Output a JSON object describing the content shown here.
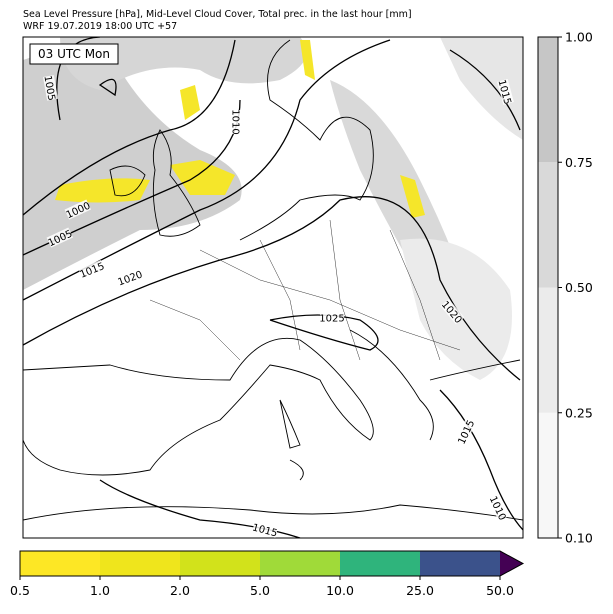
{
  "title_line1": "Sea Level Pressure [hPa], Mid-Level Cloud Cover, Total prec. in the last hour [mm]",
  "title_line2": "WRF 19.07.2019 18:00 UTC +57",
  "time_label": "03 UTC Mon",
  "isobar_labels": [
    "1005",
    "1010",
    "1015",
    "1000",
    "1005",
    "1015",
    "1020",
    "1025",
    "1020",
    "1015",
    "1010",
    "1015"
  ],
  "cloud_colorbar": {
    "ticks": [
      "0.10",
      "0.25",
      "0.50",
      "0.75",
      "1.00"
    ],
    "colors": [
      "#f7f7f7",
      "#ebebeb",
      "#d9d9d9",
      "#c6c6c6"
    ]
  },
  "precip_colorbar": {
    "ticks": [
      "0.5",
      "1.0",
      "2.0",
      "5.0",
      "10.0",
      "25.0",
      "50.0"
    ],
    "colors": [
      "#fde725",
      "#efe51c",
      "#d2e21b",
      "#a0da39",
      "#2fb47c",
      "#3b528b"
    ],
    "over_color": "#440154"
  }
}
